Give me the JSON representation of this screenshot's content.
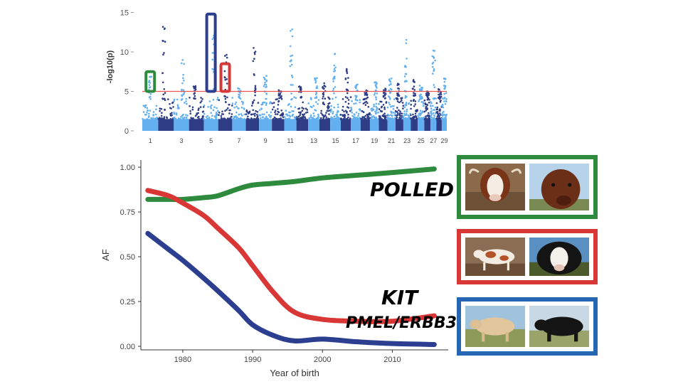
{
  "colors": {
    "polled": "#2e8b3e",
    "kit": "#d93636",
    "pmel": "#2c3e8f",
    "manhattan_light": "#63b0f0",
    "manhattan_dark": "#2e3d86",
    "threshold": "#e85555"
  },
  "manhattan": {
    "ylabel": "-log10(p)",
    "yticks": [
      0,
      5,
      10,
      15
    ],
    "ylim": [
      0,
      15.5
    ],
    "threshold": 5,
    "chrom_labels": [
      "1",
      "3",
      "5",
      "7",
      "9",
      "11",
      "13",
      "15",
      "17",
      "19",
      "21",
      "23",
      "25",
      "27",
      "29"
    ],
    "highlights": [
      {
        "gene": "POLLED",
        "chromosome": 1,
        "color": "polled",
        "ymin": 5,
        "ymax": 7.5
      },
      {
        "gene": "PMEL/ERBB3",
        "chromosome": 5,
        "color": "pmel",
        "ymin": 5,
        "ymax": 14.8
      },
      {
        "gene": "KIT",
        "chromosome": 6,
        "color": "kit",
        "ymin": 5,
        "ymax": 8.5
      }
    ]
  },
  "chart_data": {
    "type": "line",
    "xlabel": "Year of birth",
    "ylabel": "AF",
    "xlim": [
      1974,
      2018
    ],
    "ylim": [
      -0.02,
      1.04
    ],
    "xticks": [
      1980,
      1990,
      2000,
      2010
    ],
    "yticks": [
      0.0,
      0.25,
      0.5,
      0.75,
      1.0
    ],
    "ytick_labels": [
      "0.00",
      "0.25",
      "0.50",
      "0.75",
      "1.00"
    ],
    "series": [
      {
        "name": "POLLED",
        "color": "polled",
        "x": [
          1975,
          1978,
          1980,
          1983,
          1985,
          1988,
          1990,
          1993,
          1996,
          2000,
          2005,
          2010,
          2016
        ],
        "y": [
          0.82,
          0.82,
          0.82,
          0.83,
          0.84,
          0.88,
          0.9,
          0.91,
          0.92,
          0.94,
          0.955,
          0.97,
          0.99
        ]
      },
      {
        "name": "KIT",
        "color": "kit",
        "x": [
          1975,
          1978,
          1980,
          1983,
          1985,
          1988,
          1990,
          1993,
          1996,
          2000,
          2005,
          2010,
          2016
        ],
        "y": [
          0.87,
          0.84,
          0.8,
          0.73,
          0.66,
          0.55,
          0.45,
          0.3,
          0.19,
          0.15,
          0.14,
          0.14,
          0.17
        ]
      },
      {
        "name": "PMEL/ERBB3",
        "color": "pmel",
        "x": [
          1975,
          1978,
          1980,
          1983,
          1985,
          1988,
          1990,
          1993,
          1996,
          2000,
          2005,
          2010,
          2016
        ],
        "y": [
          0.63,
          0.54,
          0.48,
          0.38,
          0.31,
          0.2,
          0.12,
          0.06,
          0.03,
          0.04,
          0.025,
          0.015,
          0.01
        ]
      }
    ]
  },
  "gene_labels": {
    "polled": "POLLED",
    "kit": "KIT",
    "pmel": "PMEL/ERBB3"
  },
  "photos": [
    {
      "trait": "polled",
      "border": "polled",
      "left": "hereford-horned-icon",
      "right": "red-polled-icon"
    },
    {
      "trait": "kit",
      "border": "kit",
      "left": "spotted-calf-icon",
      "right": "white-face-black-icon"
    },
    {
      "trait": "pmel",
      "border": "pmel",
      "left": "light-bull-icon",
      "right": "black-bull-icon"
    }
  ]
}
